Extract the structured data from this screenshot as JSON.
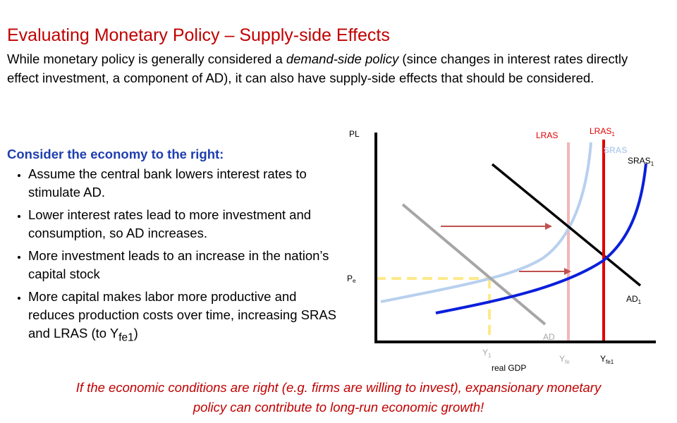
{
  "title": "Evaluating Monetary Policy – Supply-side Effects",
  "intro": {
    "before": "While monetary policy is generally considered a ",
    "emphasis": "demand-side policy",
    "after": " (since changes in interest rates directly effect investment, a component of AD), it can also have supply-side effects that should be considered."
  },
  "consider": {
    "heading": "Consider the economy to the right:",
    "bullets": [
      "Assume the central bank lowers interest rates to stimulate AD.",
      "Lower interest rates lead to more investment and consumption, so AD increases.",
      "More investment leads to an increase in the nation’s capital stock",
      "More capital makes labor more productive and reduces production costs over time, increasing SRAS and LRAS (to Y"
    ],
    "last_sub": "fe1",
    "last_tail": ")"
  },
  "diagram": {
    "y_axis_label": "PL",
    "x_axis_label": "real GDP",
    "pe_label": "P",
    "pe_sub": "e",
    "lras_label": "LRAS",
    "lras1_label": "LRAS",
    "lras1_sub": "1",
    "sras_label": "SRAS",
    "sras1_label": "SRAS",
    "sras1_sub": "1",
    "ad_label": "AD",
    "ad1_label": "AD",
    "ad1_sub": "1",
    "y1_label": "Y",
    "y1_sub": "1",
    "yfe_label": "Y",
    "yfe_sub": "fe",
    "yfe1_label": "Y",
    "yfe1_sub": "fe1",
    "colors": {
      "lras": "#f2b6b6",
      "lras1": "#e00000",
      "sras": "#b8d0ee",
      "sras1": "#0a1fdc",
      "ad": "#a6a6a6",
      "ad1": "#000000",
      "arrow": "#c0504d",
      "guide": "#ffe98a",
      "light_label": "#a6a6a6",
      "red_label": "#e00000"
    }
  },
  "conclusion": {
    "line1": "If the economic conditions are right (e.g. firms are willing to invest), expansionary monetary",
    "line2": "policy can contribute to long-run economic growth!"
  }
}
